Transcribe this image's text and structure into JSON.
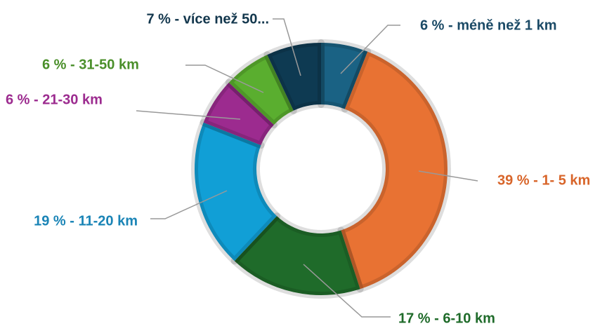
{
  "chart_data": {
    "type": "donut",
    "values": [
      6,
      39,
      17,
      19,
      6,
      6,
      7
    ],
    "value_labels": [
      "6 % - méně než 1 km",
      "39 % - 1- 5 km",
      "17 % - 6-10 km",
      "19 % - 11-20 km",
      "6 % - 21-30 km",
      "6 % - 31-50 km",
      "7 % - více než 50..."
    ],
    "colors": [
      "#1a6284",
      "#e87233",
      "#1f6b2a",
      "#119fd6",
      "#9c2b8f",
      "#5aae2f",
      "#0e3a52"
    ],
    "label_colors": [
      "#1b4a66",
      "#d8652a",
      "#1f6b2a",
      "#1a84b6",
      "#9c2b8f",
      "#4a8f2a",
      "#13374d"
    ]
  }
}
